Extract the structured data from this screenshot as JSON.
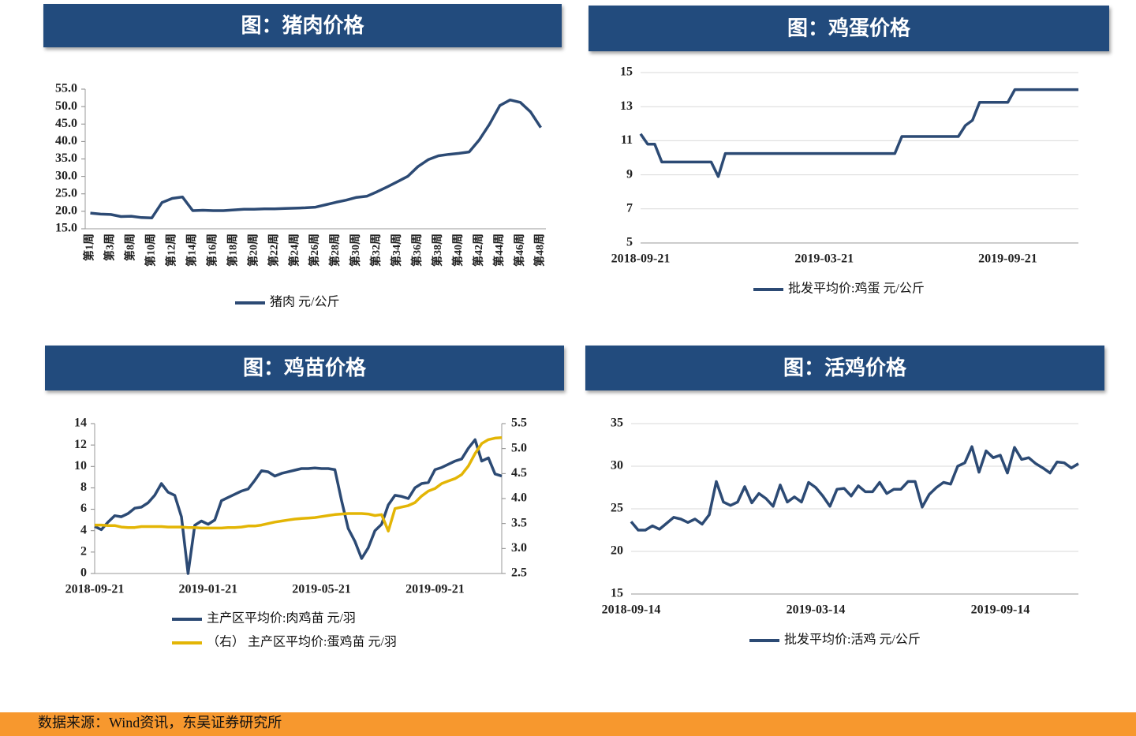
{
  "chart_data": [
    {
      "type": "line",
      "title": "图：猪肉价格",
      "categories": [
        "第1周",
        null,
        "第3周",
        null,
        "第8周",
        null,
        "第10周",
        null,
        "第12周",
        null,
        "第14周",
        null,
        "第16周",
        null,
        "第18周",
        null,
        "第20周",
        null,
        "第22周",
        null,
        "第24周",
        null,
        "第26周",
        null,
        "第28周",
        null,
        "第30周",
        null,
        "第32周",
        null,
        "第34周",
        null,
        "第36周",
        null,
        "第38周",
        null,
        "第40周",
        null,
        "第42周",
        null,
        "第44周",
        null,
        "第46周",
        null,
        "第48周"
      ],
      "series": [
        {
          "name": "猪肉 元/公斤",
          "color": "#2c4a74",
          "values": [
            19.5,
            19.2,
            19.1,
            18.5,
            18.6,
            18.2,
            18.1,
            22.5,
            23.7,
            24.1,
            20.2,
            20.3,
            20.2,
            20.2,
            20.4,
            20.6,
            20.6,
            20.7,
            20.7,
            20.8,
            20.9,
            21.0,
            21.2,
            21.9,
            22.6,
            23.2,
            24.0,
            24.3,
            25.6,
            27.0,
            28.5,
            30.0,
            32.8,
            34.8,
            35.9,
            36.3,
            36.6,
            37.0,
            40.5,
            45.0,
            50.3,
            51.9,
            51.2,
            48.5,
            44.0
          ]
        }
      ],
      "ylim": [
        15,
        55
      ],
      "yticks": [
        {
          "value": 15,
          "label": "15.0"
        },
        {
          "value": 20,
          "label": "20.0"
        },
        {
          "value": 25,
          "label": "25.0"
        },
        {
          "value": 30,
          "label": "30.0"
        },
        {
          "value": 35,
          "label": "35.0"
        },
        {
          "value": 40,
          "label": "40.0"
        },
        {
          "value": 45,
          "label": "45.0"
        },
        {
          "value": 50,
          "label": "50.0"
        },
        {
          "value": 55,
          "label": "55.0"
        }
      ],
      "grid": false,
      "legend": "bottom"
    },
    {
      "type": "line",
      "title": "图：鸡蛋价格",
      "categories": [
        "2018-09-21",
        null,
        null,
        null,
        null,
        null,
        null,
        null,
        null,
        null,
        null,
        null,
        null,
        null,
        null,
        null,
        null,
        null,
        null,
        null,
        null,
        null,
        null,
        null,
        null,
        null,
        "2019-03-21",
        null,
        null,
        null,
        null,
        null,
        null,
        null,
        null,
        null,
        null,
        null,
        null,
        null,
        null,
        null,
        null,
        null,
        null,
        null,
        null,
        null,
        null,
        null,
        null,
        null,
        "2019-09-21",
        null,
        null,
        null,
        null,
        null,
        null,
        null,
        null,
        null,
        null
      ],
      "series": [
        {
          "name": "批发平均价:鸡蛋 元/公斤",
          "color": "#2c4a74",
          "values": [
            11.4,
            10.8,
            10.8,
            9.75,
            9.75,
            9.75,
            9.75,
            9.75,
            9.75,
            9.75,
            9.75,
            8.9,
            10.25,
            10.25,
            10.25,
            10.25,
            10.25,
            10.25,
            10.25,
            10.25,
            10.25,
            10.25,
            10.25,
            10.25,
            10.25,
            10.25,
            10.25,
            10.25,
            10.25,
            10.25,
            10.25,
            10.25,
            10.25,
            10.25,
            10.25,
            10.25,
            10.25,
            11.25,
            11.25,
            11.25,
            11.25,
            11.25,
            11.25,
            11.25,
            11.25,
            11.25,
            11.9,
            12.2,
            13.25,
            13.25,
            13.25,
            13.25,
            13.25,
            14.0,
            14.0,
            14.0,
            14.0,
            14.0,
            14.0,
            14.0,
            14.0,
            14.0,
            14.0
          ]
        }
      ],
      "ylim": [
        5,
        15
      ],
      "yticks": [
        5,
        7,
        9,
        11,
        13,
        15
      ],
      "grid": true,
      "legend": "bottom"
    },
    {
      "type": "line",
      "title": "图：鸡苗价格",
      "categories": [
        "2018-09-21",
        null,
        null,
        null,
        null,
        null,
        null,
        null,
        null,
        null,
        null,
        null,
        null,
        null,
        null,
        null,
        null,
        "2019-01-21",
        null,
        null,
        null,
        null,
        null,
        null,
        null,
        null,
        null,
        null,
        null,
        null,
        null,
        null,
        null,
        null,
        "2019-05-21",
        null,
        null,
        null,
        null,
        null,
        null,
        null,
        null,
        null,
        null,
        null,
        null,
        null,
        null,
        null,
        null,
        "2019-09-21",
        null,
        null,
        null,
        null,
        null,
        null,
        null,
        null,
        null,
        null
      ],
      "series": [
        {
          "name": "主产区平均价:肉鸡苗 元/羽",
          "color": "#2c4a74",
          "values": [
            4.4,
            4.1,
            4.8,
            5.4,
            5.3,
            5.6,
            6.1,
            6.2,
            6.6,
            7.3,
            8.4,
            7.6,
            7.3,
            5.3,
            0,
            4.5,
            4.9,
            4.6,
            5.0,
            6.8,
            7.1,
            7.4,
            7.7,
            7.9,
            8.7,
            9.6,
            9.5,
            9.1,
            9.35,
            9.5,
            9.65,
            9.8,
            9.8,
            9.85,
            9.8,
            9.8,
            9.7,
            6.8,
            4.2,
            3.0,
            1.4,
            2.4,
            4.0,
            4.6,
            6.4,
            7.3,
            7.2,
            7.0,
            8.0,
            8.4,
            8.5,
            9.7,
            9.9,
            10.2,
            10.5,
            10.7,
            11.7,
            12.5,
            10.5,
            10.8,
            9.3,
            9.1
          ]
        },
        {
          "name": "（右） 主产区平均价:蛋鸡苗 元/羽",
          "color": "#e3b505",
          "axis": "y2",
          "values": [
            3.47,
            3.47,
            3.46,
            3.46,
            3.43,
            3.42,
            3.42,
            3.44,
            3.44,
            3.44,
            3.44,
            3.43,
            3.43,
            3.43,
            3.42,
            3.42,
            3.41,
            3.41,
            3.41,
            3.41,
            3.42,
            3.42,
            3.43,
            3.45,
            3.45,
            3.47,
            3.5,
            3.53,
            3.55,
            3.57,
            3.59,
            3.6,
            3.61,
            3.62,
            3.64,
            3.66,
            3.68,
            3.69,
            3.7,
            3.7,
            3.7,
            3.69,
            3.66,
            3.68,
            3.35,
            3.8,
            3.83,
            3.86,
            3.92,
            4.05,
            4.15,
            4.2,
            4.3,
            4.35,
            4.4,
            4.48,
            4.65,
            4.9,
            5.1,
            5.18,
            5.21,
            5.22
          ]
        }
      ],
      "ylim": [
        0,
        14
      ],
      "yticks": [
        0,
        2,
        4,
        6,
        8,
        10,
        12,
        14
      ],
      "y2lim": [
        2.5,
        5.5
      ],
      "y2ticks": [
        2.5,
        {
          "value": 3,
          "label": "3.0"
        },
        3.5,
        {
          "value": 4,
          "label": "4.0"
        },
        4.5,
        {
          "value": 5,
          "label": "5.0"
        },
        5.5
      ],
      "grid": false,
      "legend": "bottom"
    },
    {
      "type": "line",
      "title": "图：活鸡价格",
      "categories": [
        "2018-09-14",
        null,
        null,
        null,
        null,
        null,
        null,
        null,
        null,
        null,
        null,
        null,
        null,
        null,
        null,
        null,
        null,
        null,
        null,
        null,
        null,
        null,
        null,
        null,
        null,
        null,
        "2019-03-14",
        null,
        null,
        null,
        null,
        null,
        null,
        null,
        null,
        null,
        null,
        null,
        null,
        null,
        null,
        null,
        null,
        null,
        null,
        null,
        null,
        null,
        null,
        null,
        null,
        null,
        "2019-09-14",
        null,
        null,
        null,
        null,
        null,
        null,
        null,
        null,
        null,
        null,
        null
      ],
      "series": [
        {
          "name": "批发平均价:活鸡 元/公斤",
          "color": "#2c4a74",
          "values": [
            23.5,
            22.5,
            22.5,
            23.0,
            22.6,
            23.3,
            24.0,
            23.8,
            23.4,
            23.8,
            23.2,
            24.3,
            28.2,
            25.8,
            25.4,
            25.8,
            27.6,
            25.7,
            26.8,
            26.2,
            25.3,
            27.8,
            25.8,
            26.4,
            25.8,
            28.1,
            27.5,
            26.5,
            25.3,
            27.3,
            27.4,
            26.5,
            27.7,
            27.0,
            27.0,
            28.1,
            26.8,
            27.3,
            27.3,
            28.2,
            28.2,
            25.2,
            26.7,
            27.5,
            28.1,
            27.9,
            30.0,
            30.4,
            32.3,
            29.3,
            31.8,
            31.0,
            31.3,
            29.2,
            32.2,
            30.8,
            31.0,
            30.3,
            29.8,
            29.2,
            30.5,
            30.4,
            29.8,
            30.3
          ]
        }
      ],
      "ylim": [
        15,
        35
      ],
      "yticks": [
        15,
        20,
        25,
        30,
        35
      ],
      "grid": true,
      "legend": "bottom"
    }
  ],
  "footer": {
    "source": "数据来源：Wind资讯，东吴证券研究所"
  }
}
